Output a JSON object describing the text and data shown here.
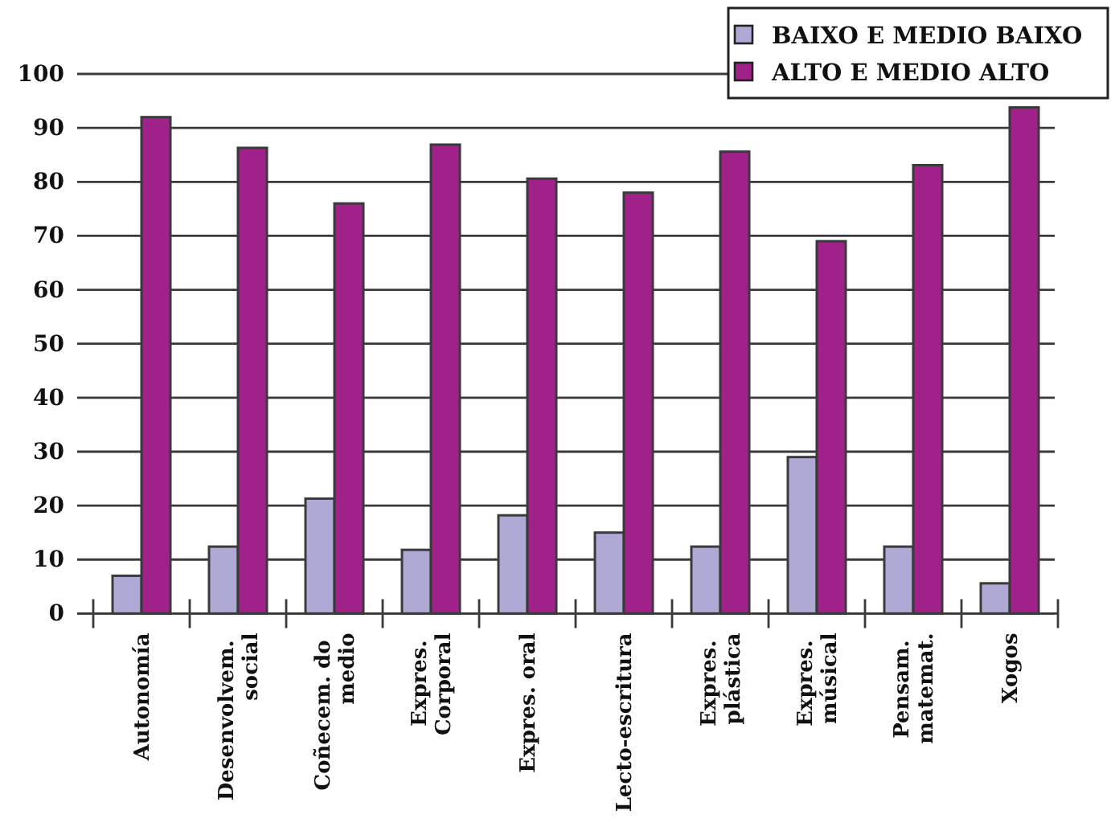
{
  "chart_data": {
    "type": "bar",
    "categories": [
      "Autonomía",
      "Desenvolvem.\nsocial",
      "Coñecem. do\nmedio",
      "Expres.\nCorporal",
      "Expres. oral",
      "Lecto-escritura",
      "Expres.\nplástica",
      "Expres.\nmúsical",
      "Pensam.\nmatemat.",
      "Xogos"
    ],
    "series": [
      {
        "name": "BAIXO E MEDIO BAIXO",
        "color": "#aeaad5",
        "values": [
          7,
          12.4,
          21.3,
          11.8,
          18.2,
          15,
          12.4,
          29,
          12.4,
          5.6
        ]
      },
      {
        "name": "ALTO E MEDIO ALTO",
        "color": "#a1218b",
        "values": [
          92,
          86.3,
          76,
          86.9,
          80.6,
          78,
          85.6,
          69,
          83.1,
          93.8
        ]
      }
    ],
    "ylim": [
      0,
      100
    ],
    "yticks": [
      0,
      10,
      20,
      30,
      40,
      50,
      60,
      70,
      80,
      90,
      100
    ],
    "grid": "y",
    "legend": "top right"
  }
}
